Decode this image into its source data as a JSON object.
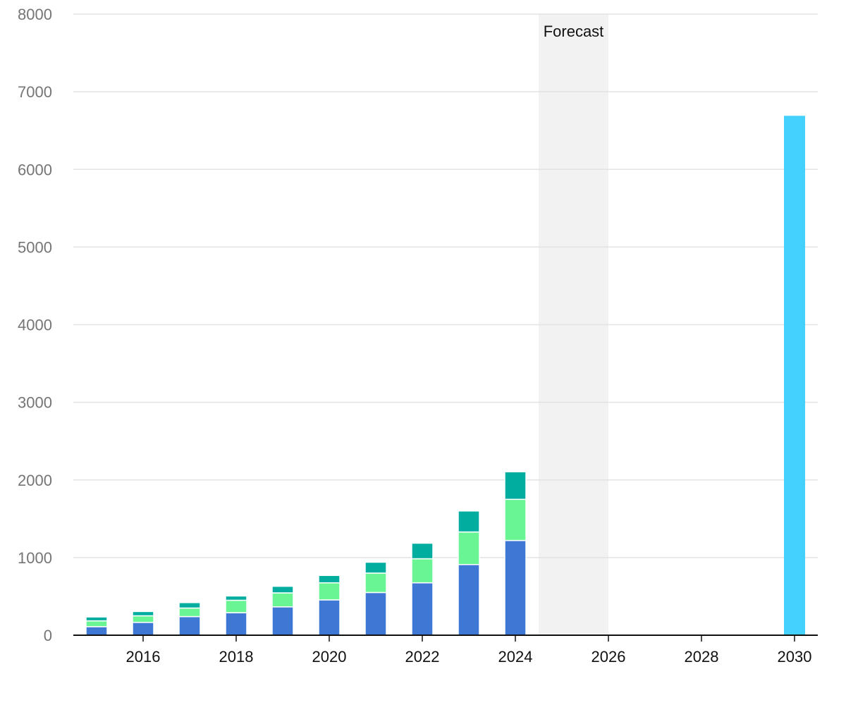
{
  "chart_data": {
    "type": "bar",
    "stacked": true,
    "title": "",
    "xlabel": "",
    "ylabel": "",
    "ylim": [
      0,
      8000
    ],
    "yticks": [
      0,
      1000,
      2000,
      3000,
      4000,
      5000,
      6000,
      7000,
      8000
    ],
    "xlim": [
      2014.5,
      2030.5
    ],
    "xticks": [
      2016,
      2018,
      2020,
      2022,
      2024,
      2026,
      2028,
      2030
    ],
    "grid": true,
    "legend": "none",
    "forecast_band": {
      "label": "Forecast",
      "from": 2024.5,
      "to": 2026
    },
    "x": [
      2015,
      2016,
      2017,
      2018,
      2019,
      2020,
      2021,
      2022,
      2023,
      2024
    ],
    "series": [
      {
        "color": "#3f78d4",
        "values": [
          110,
          165,
          240,
          290,
          365,
          455,
          550,
          675,
          910,
          1220
        ]
      },
      {
        "color": "#69f594",
        "values": [
          75,
          85,
          110,
          160,
          180,
          220,
          250,
          310,
          420,
          530
        ]
      },
      {
        "color": "#00ad9f",
        "values": [
          50,
          55,
          70,
          55,
          85,
          95,
          140,
          200,
          270,
          355
        ]
      }
    ],
    "forecast_bars": [
      {
        "x": 2030,
        "value": 6690,
        "color": "#45d1fd"
      }
    ]
  }
}
